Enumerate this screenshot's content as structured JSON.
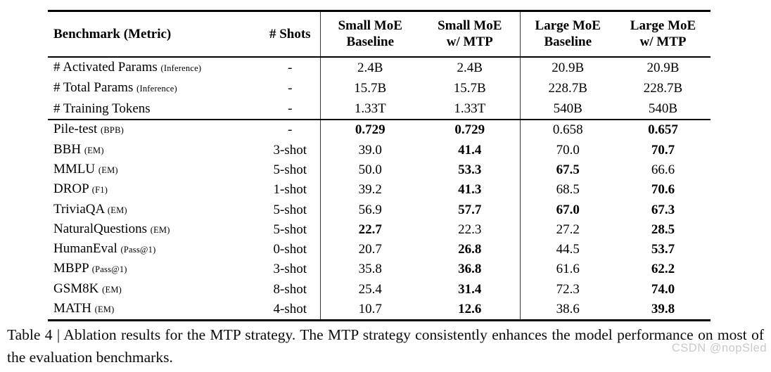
{
  "table": {
    "headers": {
      "benchmark": "Benchmark (Metric)",
      "shots": "# Shots",
      "columns": [
        {
          "line1": "Small MoE",
          "line2": "Baseline"
        },
        {
          "line1": "Small MoE",
          "line2": "w/ MTP"
        },
        {
          "line1": "Large MoE",
          "line2": "Baseline"
        },
        {
          "line1": "Large MoE",
          "line2": "w/ MTP"
        }
      ]
    },
    "param_rows": [
      {
        "name": "# Activated Params",
        "metric": "(Inference)",
        "shots": "-",
        "values": [
          "2.4B",
          "2.4B",
          "20.9B",
          "20.9B"
        ],
        "bold": [
          false,
          false,
          false,
          false
        ]
      },
      {
        "name": "# Total Params",
        "metric": "(Inference)",
        "shots": "-",
        "values": [
          "15.7B",
          "15.7B",
          "228.7B",
          "228.7B"
        ],
        "bold": [
          false,
          false,
          false,
          false
        ]
      },
      {
        "name": "# Training Tokens",
        "metric": "",
        "shots": "-",
        "values": [
          "1.33T",
          "1.33T",
          "540B",
          "540B"
        ],
        "bold": [
          false,
          false,
          false,
          false
        ]
      }
    ],
    "benchmark_rows": [
      {
        "name": "Pile-test",
        "metric": "(BPB)",
        "shots": "-",
        "values": [
          "0.729",
          "0.729",
          "0.658",
          "0.657"
        ],
        "bold": [
          true,
          true,
          false,
          true
        ]
      },
      {
        "name": "BBH",
        "metric": "(EM)",
        "shots": "3-shot",
        "values": [
          "39.0",
          "41.4",
          "70.0",
          "70.7"
        ],
        "bold": [
          false,
          true,
          false,
          true
        ]
      },
      {
        "name": "MMLU",
        "metric": "(EM)",
        "shots": "5-shot",
        "values": [
          "50.0",
          "53.3",
          "67.5",
          "66.6"
        ],
        "bold": [
          false,
          true,
          true,
          false
        ]
      },
      {
        "name": "DROP",
        "metric": "(F1)",
        "shots": "1-shot",
        "values": [
          "39.2",
          "41.3",
          "68.5",
          "70.6"
        ],
        "bold": [
          false,
          true,
          false,
          true
        ]
      },
      {
        "name": "TriviaQA",
        "metric": "(EM)",
        "shots": "5-shot",
        "values": [
          "56.9",
          "57.7",
          "67.0",
          "67.3"
        ],
        "bold": [
          false,
          true,
          true,
          true
        ]
      },
      {
        "name": "NaturalQuestions",
        "metric": "(EM)",
        "shots": "5-shot",
        "values": [
          "22.7",
          "22.3",
          "27.2",
          "28.5"
        ],
        "bold": [
          true,
          false,
          false,
          true
        ]
      },
      {
        "name": "HumanEval",
        "metric": "(Pass@1)",
        "shots": "0-shot",
        "values": [
          "20.7",
          "26.8",
          "44.5",
          "53.7"
        ],
        "bold": [
          false,
          true,
          false,
          true
        ]
      },
      {
        "name": "MBPP",
        "metric": "(Pass@1)",
        "shots": "3-shot",
        "values": [
          "35.8",
          "36.8",
          "61.6",
          "62.2"
        ],
        "bold": [
          false,
          true,
          false,
          true
        ]
      },
      {
        "name": "GSM8K",
        "metric": "(EM)",
        "shots": "8-shot",
        "values": [
          "25.4",
          "31.4",
          "72.3",
          "74.0"
        ],
        "bold": [
          false,
          true,
          false,
          true
        ]
      },
      {
        "name": "MATH",
        "metric": "(EM)",
        "shots": "4-shot",
        "values": [
          "10.7",
          "12.6",
          "38.6",
          "39.8"
        ],
        "bold": [
          false,
          true,
          false,
          true
        ]
      }
    ]
  },
  "caption": {
    "text": "Table 4 | Ablation results for the MTP strategy. The MTP strategy consistently enhances the model performance on most of the evaluation benchmarks."
  },
  "watermark": "CSDN @nopSled"
}
